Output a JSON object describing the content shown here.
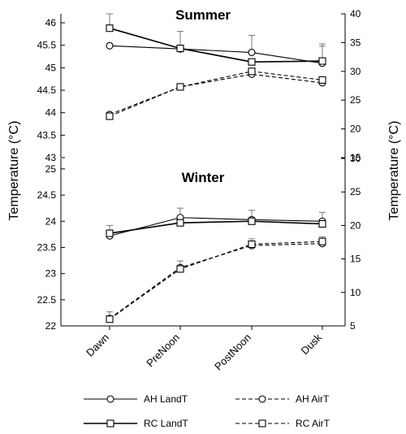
{
  "y_axis_label": "Temperature (°C)",
  "categories": [
    "Dawn",
    "PreNoon",
    "PostNoon",
    "Dusk"
  ],
  "chart_data": [
    {
      "type": "line",
      "title": "Summer",
      "categories": [
        "Dawn",
        "PreNoon",
        "PostNoon",
        "Dusk"
      ],
      "ylabel": "Temperature (°C)",
      "ylim": [
        43,
        46.2
      ],
      "yticks": [
        "43",
        "43.5",
        "44",
        "44.5",
        "45",
        "45.5",
        "46"
      ],
      "y2label": "Temperature (°C)",
      "y2lim": [
        15,
        40
      ],
      "y2ticks": [
        "15",
        "20",
        "25",
        "30",
        "35",
        "40"
      ],
      "series": [
        {
          "name": "AH LandT",
          "axis": "left",
          "marker": "circle",
          "dash": false,
          "thick": false,
          "values": [
            45.49,
            45.42,
            45.34,
            45.1
          ],
          "err": [
            0,
            0,
            0.38,
            0.38
          ]
        },
        {
          "name": "AH AirT",
          "axis": "right",
          "marker": "circle",
          "dash": true,
          "thick": false,
          "values": [
            22.5,
            27.3,
            29.5,
            28
          ],
          "err": [
            0,
            0,
            0,
            0
          ]
        },
        {
          "name": "RC LandT",
          "axis": "left",
          "marker": "square",
          "dash": false,
          "thick": true,
          "values": [
            45.88,
            45.43,
            45.13,
            45.15
          ],
          "err": [
            0.32,
            0.38,
            0,
            0.38
          ]
        },
        {
          "name": "RC AirT",
          "axis": "right",
          "marker": "square",
          "dash": true,
          "thick": false,
          "values": [
            22.2,
            27.3,
            30,
            28.5
          ],
          "err": [
            0,
            0,
            0,
            0
          ]
        }
      ]
    },
    {
      "type": "line",
      "title": "Winter",
      "categories": [
        "Dawn",
        "PreNoon",
        "PostNoon",
        "Dusk"
      ],
      "ylabel": "Temperature (°C)",
      "ylim": [
        22,
        25.2
      ],
      "yticks": [
        "22",
        "22.5",
        "23",
        "23.5",
        "24",
        "24.5",
        "25"
      ],
      "y2label": "Temperature (°C)",
      "y2lim": [
        5,
        30
      ],
      "y2ticks": [
        "5",
        "10",
        "15",
        "20",
        "25",
        "30"
      ],
      "series": [
        {
          "name": "AH LandT",
          "axis": "left",
          "marker": "circle",
          "dash": false,
          "thick": false,
          "values": [
            23.72,
            24.07,
            24.03,
            24.0
          ],
          "err": [
            0.2,
            0.18,
            0.18,
            0.17
          ]
        },
        {
          "name": "AH AirT",
          "axis": "right",
          "marker": "circle",
          "dash": true,
          "thick": false,
          "values": [
            6.1,
            13.7,
            17.0,
            17.3
          ],
          "err": [
            1.0,
            1.0,
            1.0,
            1.0
          ]
        },
        {
          "name": "RC LandT",
          "axis": "left",
          "marker": "square",
          "dash": false,
          "thick": true,
          "values": [
            23.77,
            23.97,
            24.0,
            23.95
          ],
          "err": [
            0.05,
            0,
            0,
            0
          ]
        },
        {
          "name": "RC AirT",
          "axis": "right",
          "marker": "square",
          "dash": true,
          "thick": false,
          "values": [
            6.0,
            13.5,
            17.2,
            17.6
          ],
          "err": [
            0,
            0,
            0,
            0
          ]
        }
      ]
    }
  ],
  "legend": [
    {
      "name": "AH LandT",
      "marker": "circle",
      "dash": false,
      "thick": false
    },
    {
      "name": "AH AirT",
      "marker": "circle",
      "dash": true,
      "thick": false
    },
    {
      "name": "RC LandT",
      "marker": "square",
      "dash": false,
      "thick": true
    },
    {
      "name": "RC AirT",
      "marker": "square",
      "dash": true,
      "thick": false
    }
  ]
}
